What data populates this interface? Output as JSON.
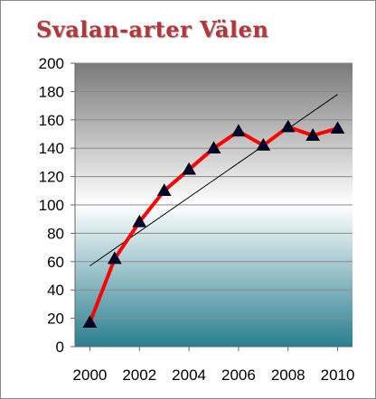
{
  "chart_data": {
    "type": "line",
    "title": "Svalan-arter Välen",
    "xlabel": "",
    "ylabel": "",
    "x": [
      2000,
      2001,
      2002,
      2003,
      2004,
      2005,
      2006,
      2007,
      2008,
      2009,
      2010
    ],
    "series": [
      {
        "values": [
          17,
          62,
          88,
          110,
          125,
          140,
          152,
          142,
          155,
          149,
          154
        ],
        "color": "#ff0000",
        "marker": "triangle",
        "marker_color": "#000033"
      }
    ],
    "trendline": {
      "type": "linear",
      "start": [
        2000,
        57
      ],
      "end": [
        2010,
        178
      ],
      "color": "#000000"
    },
    "xlim": [
      1999.4,
      2010.6
    ],
    "ylim": [
      0,
      200
    ],
    "xticks": [
      "2000",
      "2002",
      "2004",
      "2006",
      "2008",
      "2010"
    ],
    "yticks": [
      "0",
      "20",
      "40",
      "60",
      "80",
      "100",
      "120",
      "140",
      "160",
      "180",
      "200"
    ],
    "grid": true,
    "legend": "none",
    "background_gradient": [
      "#7a7a7a",
      "#ffffff",
      "#2a7f90"
    ]
  }
}
